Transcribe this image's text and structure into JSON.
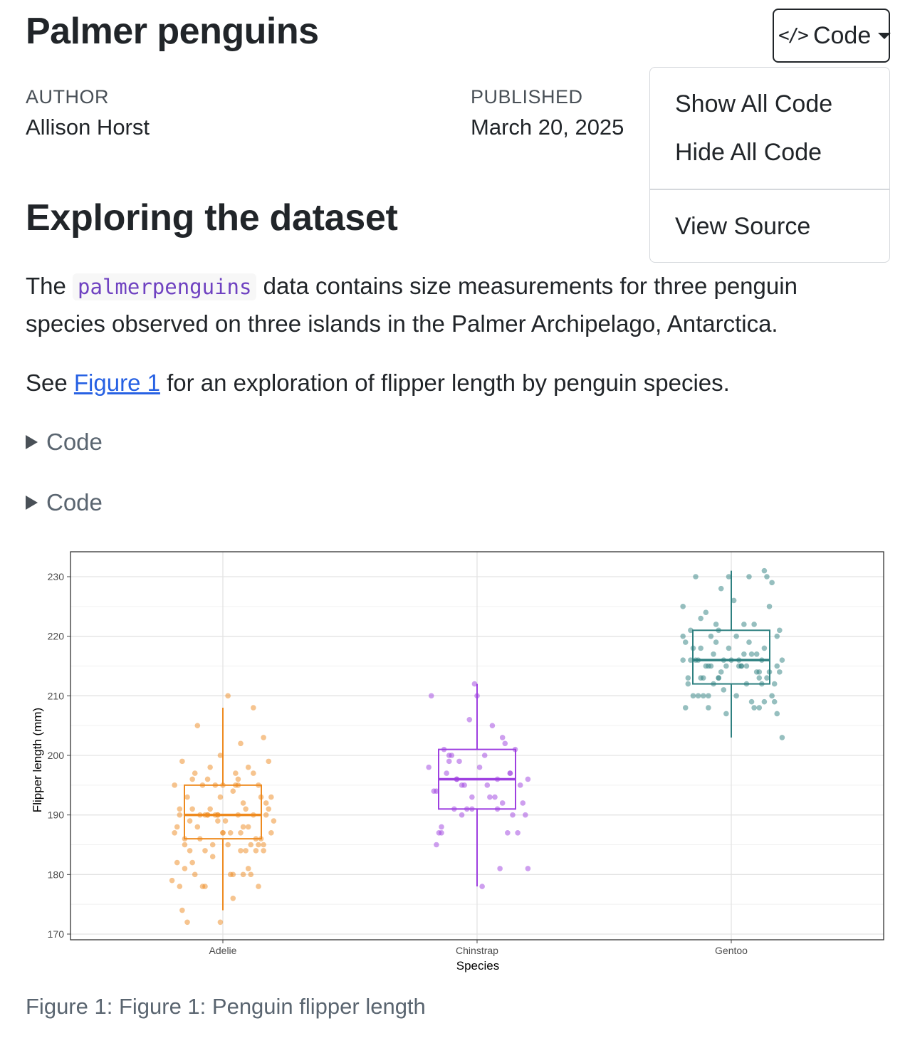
{
  "page": {
    "title": "Palmer penguins",
    "code_button_icon": "code-icon",
    "code_button_label": "Code",
    "meta": {
      "author_label": "AUTHOR",
      "author": "Allison Horst",
      "published_label": "PUBLISHED",
      "published": "March 20, 2025"
    },
    "dropdown": {
      "show_all": "Show All Code",
      "hide_all": "Hide All Code",
      "view_source": "View Source"
    },
    "section_heading": "Exploring the dataset",
    "para1": {
      "pre": "The ",
      "code": "palmerpenguins",
      "post": " data contains size measurements for three penguin",
      "line2": "species observed on three islands in the Palmer Archipelago, Antarctica."
    },
    "para2": {
      "pre": "See ",
      "link": "Figure 1",
      "post": " for an exploration of flipper length by penguin species."
    },
    "code_folds": [
      "Code",
      "Code"
    ],
    "caption": "Figure 1: Figure 1: Penguin flipper length"
  },
  "chart_data": {
    "type": "boxplot",
    "xlabel": "Species",
    "ylabel": "Flipper length (mm)",
    "ylim": [
      170,
      232
    ],
    "yticks": [
      170,
      180,
      190,
      200,
      210,
      220,
      230
    ],
    "grid": true,
    "categories": [
      "Adelie",
      "Chinstrap",
      "Gentoo"
    ],
    "colors": {
      "Adelie": "#ee8a1f",
      "Chinstrap": "#9e3fe0",
      "Gentoo": "#2e8080"
    },
    "boxes": [
      {
        "species": "Adelie",
        "min": 174,
        "q1": 186,
        "median": 190,
        "q3": 195,
        "max": 208
      },
      {
        "species": "Chinstrap",
        "min": 178,
        "q1": 191,
        "median": 196,
        "q3": 201,
        "max": 212
      },
      {
        "species": "Gentoo",
        "min": 203,
        "q1": 212,
        "median": 216,
        "q3": 221,
        "max": 231
      }
    ],
    "points": {
      "Adelie": [
        {
          "x": 0.1,
          "y": 181
        },
        {
          "x": -0.09,
          "y": 186
        },
        {
          "x": 0.14,
          "y": 195
        },
        {
          "x": -0.01,
          "y": 193
        },
        {
          "x": 0.06,
          "y": 190
        },
        {
          "x": -0.15,
          "y": 186
        },
        {
          "x": 0.08,
          "y": 180
        },
        {
          "x": -0.12,
          "y": 182
        },
        {
          "x": 0.18,
          "y": 191
        },
        {
          "x": -0.05,
          "y": 198
        },
        {
          "x": 0.02,
          "y": 185
        },
        {
          "x": -0.19,
          "y": 195
        },
        {
          "x": 0.12,
          "y": 197
        },
        {
          "x": -0.07,
          "y": 184
        },
        {
          "x": 0.04,
          "y": 194
        },
        {
          "x": -0.16,
          "y": 174
        },
        {
          "x": 0.11,
          "y": 180
        },
        {
          "x": -0.02,
          "y": 189
        },
        {
          "x": 0.16,
          "y": 185
        },
        {
          "x": -0.11,
          "y": 180
        },
        {
          "x": 0.07,
          "y": 187
        },
        {
          "x": -0.04,
          "y": 183
        },
        {
          "x": 0.19,
          "y": 187
        },
        {
          "x": -0.14,
          "y": 172
        },
        {
          "x": 0.03,
          "y": 180
        },
        {
          "x": -0.08,
          "y": 178
        },
        {
          "x": 0.14,
          "y": 178
        },
        {
          "x": -0.18,
          "y": 188
        },
        {
          "x": 0.09,
          "y": 184
        },
        {
          "x": 0.0,
          "y": 195
        },
        {
          "x": -0.06,
          "y": 196
        },
        {
          "x": 0.17,
          "y": 190
        },
        {
          "x": -0.13,
          "y": 184
        },
        {
          "x": 0.05,
          "y": 195
        },
        {
          "x": -0.03,
          "y": 190
        },
        {
          "x": 0.13,
          "y": 186
        },
        {
          "x": -0.17,
          "y": 191
        },
        {
          "x": 0.08,
          "y": 192
        },
        {
          "x": -0.1,
          "y": 188
        },
        {
          "x": 0.15,
          "y": 193
        },
        {
          "x": -0.06,
          "y": 190
        },
        {
          "x": 0.02,
          "y": 210
        },
        {
          "x": -0.12,
          "y": 191
        },
        {
          "x": 0.1,
          "y": 198
        },
        {
          "x": -0.02,
          "y": 190
        },
        {
          "x": 0.16,
          "y": 203
        },
        {
          "x": -0.15,
          "y": 185
        },
        {
          "x": 0.07,
          "y": 184
        },
        {
          "x": -0.08,
          "y": 195
        },
        {
          "x": 0.19,
          "y": 193
        },
        {
          "x": 0.0,
          "y": 187
        },
        {
          "x": -0.19,
          "y": 187
        },
        {
          "x": 0.12,
          "y": 190
        },
        {
          "x": -0.04,
          "y": 185
        },
        {
          "x": 0.06,
          "y": 195
        },
        {
          "x": -0.11,
          "y": 197
        },
        {
          "x": 0.04,
          "y": 176
        },
        {
          "x": -0.17,
          "y": 190
        },
        {
          "x": 0.18,
          "y": 199
        },
        {
          "x": -0.06,
          "y": 190
        },
        {
          "x": 0.09,
          "y": 191
        },
        {
          "x": -0.01,
          "y": 200
        },
        {
          "x": 0.14,
          "y": 185
        },
        {
          "x": -0.14,
          "y": 193
        },
        {
          "x": 0.03,
          "y": 187
        },
        {
          "x": -0.09,
          "y": 190
        },
        {
          "x": 0.11,
          "y": 185
        },
        {
          "x": -0.07,
          "y": 178
        },
        {
          "x": 0.17,
          "y": 192
        },
        {
          "x": -0.13,
          "y": 189
        },
        {
          "x": 0.01,
          "y": 189
        },
        {
          "x": -0.02,
          "y": 190
        },
        {
          "x": 0.15,
          "y": 186
        },
        {
          "x": -0.18,
          "y": 182
        },
        {
          "x": 0.05,
          "y": 197
        },
        {
          "x": -0.05,
          "y": 191
        },
        {
          "x": 0.13,
          "y": 184
        },
        {
          "x": -0.16,
          "y": 199
        },
        {
          "x": 0.08,
          "y": 188
        },
        {
          "x": -0.03,
          "y": 195
        },
        {
          "x": 0.2,
          "y": 189
        },
        {
          "x": -0.1,
          "y": 205
        },
        {
          "x": 0.06,
          "y": 196
        },
        {
          "x": -0.12,
          "y": 196
        },
        {
          "x": 0.12,
          "y": 208
        },
        {
          "x": 0.0,
          "y": 187
        },
        {
          "x": -0.2,
          "y": 179
        },
        {
          "x": 0.1,
          "y": 188
        },
        {
          "x": -0.07,
          "y": 190
        },
        {
          "x": 0.04,
          "y": 180
        },
        {
          "x": -0.15,
          "y": 181
        },
        {
          "x": 0.16,
          "y": 184
        },
        {
          "x": -0.01,
          "y": 172
        },
        {
          "x": 0.07,
          "y": 202
        },
        {
          "x": -0.17,
          "y": 178
        }
      ],
      "Chinstrap": [
        {
          "x": 0.1,
          "y": 192
        },
        {
          "x": -0.08,
          "y": 196
        },
        {
          "x": 0.05,
          "y": 193
        },
        {
          "x": -0.14,
          "y": 188
        },
        {
          "x": 0.13,
          "y": 197
        },
        {
          "x": -0.04,
          "y": 191
        },
        {
          "x": 0.08,
          "y": 196
        },
        {
          "x": -0.11,
          "y": 199
        },
        {
          "x": 0.18,
          "y": 192
        },
        {
          "x": -0.17,
          "y": 194
        },
        {
          "x": 0.02,
          "y": 178
        },
        {
          "x": -0.06,
          "y": 195
        },
        {
          "x": 0.15,
          "y": 201
        },
        {
          "x": -0.09,
          "y": 191
        },
        {
          "x": 0.11,
          "y": 202
        },
        {
          "x": -0.15,
          "y": 187
        },
        {
          "x": 0.0,
          "y": 210
        },
        {
          "x": -0.02,
          "y": 193
        },
        {
          "x": 0.2,
          "y": 196
        },
        {
          "x": -0.19,
          "y": 198
        },
        {
          "x": 0.06,
          "y": 205
        },
        {
          "x": -0.12,
          "y": 197
        },
        {
          "x": 0.14,
          "y": 190
        },
        {
          "x": -0.05,
          "y": 195
        },
        {
          "x": 0.09,
          "y": 181
        },
        {
          "x": -0.16,
          "y": 185
        },
        {
          "x": 0.19,
          "y": 190
        },
        {
          "x": -0.07,
          "y": 199
        },
        {
          "x": 0.03,
          "y": 200
        },
        {
          "x": -0.13,
          "y": 201
        },
        {
          "x": 0.17,
          "y": 195
        },
        {
          "x": -0.03,
          "y": 206
        },
        {
          "x": 0.12,
          "y": 187
        },
        {
          "x": -0.1,
          "y": 200
        },
        {
          "x": 0.07,
          "y": 193
        },
        {
          "x": -0.18,
          "y": 210
        },
        {
          "x": 0.01,
          "y": 198
        },
        {
          "x": -0.01,
          "y": 212
        },
        {
          "x": 0.16,
          "y": 187
        },
        {
          "x": -0.14,
          "y": 187
        },
        {
          "x": 0.1,
          "y": 203
        },
        {
          "x": -0.06,
          "y": 190
        },
        {
          "x": 0.2,
          "y": 181
        },
        {
          "x": -0.08,
          "y": 196
        },
        {
          "x": 0.04,
          "y": 195
        },
        {
          "x": -0.11,
          "y": 200
        },
        {
          "x": 0.13,
          "y": 197
        },
        {
          "x": -0.16,
          "y": 194
        },
        {
          "x": 0.08,
          "y": 191
        },
        {
          "x": -0.02,
          "y": 191
        }
      ],
      "Gentoo": [
        {
          "x": 0.1,
          "y": 217
        },
        {
          "x": -0.08,
          "y": 215
        },
        {
          "x": 0.05,
          "y": 222
        },
        {
          "x": -0.14,
          "y": 230
        },
        {
          "x": 0.13,
          "y": 218
        },
        {
          "x": -0.04,
          "y": 214
        },
        {
          "x": 0.18,
          "y": 215
        },
        {
          "x": -0.17,
          "y": 213
        },
        {
          "x": 0.02,
          "y": 210
        },
        {
          "x": -0.11,
          "y": 210
        },
        {
          "x": 0.15,
          "y": 214
        },
        {
          "x": -0.06,
          "y": 219
        },
        {
          "x": 0.08,
          "y": 209
        },
        {
          "x": -0.19,
          "y": 216
        },
        {
          "x": 0.11,
          "y": 214
        },
        {
          "x": -0.02,
          "y": 207
        },
        {
          "x": 0.19,
          "y": 221
        },
        {
          "x": -0.09,
          "y": 215
        },
        {
          "x": 0.06,
          "y": 212
        },
        {
          "x": -0.15,
          "y": 210
        },
        {
          "x": 0.14,
          "y": 230
        },
        {
          "x": -0.12,
          "y": 213
        },
        {
          "x": 0.03,
          "y": 215
        },
        {
          "x": -0.05,
          "y": 221
        },
        {
          "x": 0.17,
          "y": 209
        },
        {
          "x": -0.18,
          "y": 208
        },
        {
          "x": 0.0,
          "y": 216
        },
        {
          "x": -0.07,
          "y": 217
        },
        {
          "x": 0.12,
          "y": 212
        },
        {
          "x": -0.13,
          "y": 216
        },
        {
          "x": 0.09,
          "y": 222
        },
        {
          "x": -0.01,
          "y": 218
        },
        {
          "x": 0.16,
          "y": 210
        },
        {
          "x": -0.16,
          "y": 221
        },
        {
          "x": 0.04,
          "y": 215
        },
        {
          "x": -0.1,
          "y": 224
        },
        {
          "x": 0.2,
          "y": 203
        },
        {
          "x": -0.03,
          "y": 216
        },
        {
          "x": 0.07,
          "y": 230
        },
        {
          "x": -0.19,
          "y": 225
        },
        {
          "x": 0.13,
          "y": 209
        },
        {
          "x": -0.08,
          "y": 220
        },
        {
          "x": 0.01,
          "y": 226
        },
        {
          "x": -0.14,
          "y": 216
        },
        {
          "x": 0.18,
          "y": 220
        },
        {
          "x": -0.05,
          "y": 213
        },
        {
          "x": 0.11,
          "y": 213
        },
        {
          "x": -0.12,
          "y": 218
        },
        {
          "x": 0.06,
          "y": 215
        },
        {
          "x": -0.17,
          "y": 212
        },
        {
          "x": 0.15,
          "y": 225
        },
        {
          "x": -0.02,
          "y": 215
        },
        {
          "x": 0.09,
          "y": 208
        },
        {
          "x": -0.09,
          "y": 208
        },
        {
          "x": 0.19,
          "y": 214
        },
        {
          "x": -0.15,
          "y": 218
        },
        {
          "x": 0.03,
          "y": 216
        },
        {
          "x": -0.06,
          "y": 222
        },
        {
          "x": 0.16,
          "y": 229
        },
        {
          "x": -0.11,
          "y": 213
        },
        {
          "x": 0.05,
          "y": 217
        },
        {
          "x": -0.18,
          "y": 219
        },
        {
          "x": 0.12,
          "y": 216
        },
        {
          "x": -0.04,
          "y": 228
        },
        {
          "x": 0.08,
          "y": 217
        },
        {
          "x": -0.13,
          "y": 210
        },
        {
          "x": 0.17,
          "y": 212
        },
        {
          "x": -0.01,
          "y": 230
        },
        {
          "x": 0.1,
          "y": 214
        },
        {
          "x": -0.07,
          "y": 212
        },
        {
          "x": 0.02,
          "y": 220
        },
        {
          "x": -0.16,
          "y": 216
        },
        {
          "x": 0.14,
          "y": 213
        },
        {
          "x": -0.09,
          "y": 210
        },
        {
          "x": 0.2,
          "y": 216
        },
        {
          "x": -0.03,
          "y": 211
        },
        {
          "x": 0.07,
          "y": 219
        },
        {
          "x": -0.12,
          "y": 223
        },
        {
          "x": 0.13,
          "y": 231
        },
        {
          "x": -0.19,
          "y": 220
        },
        {
          "x": 0.04,
          "y": 215
        },
        {
          "x": -0.05,
          "y": 213
        },
        {
          "x": 0.18,
          "y": 207
        },
        {
          "x": -0.1,
          "y": 215
        },
        {
          "x": 0.11,
          "y": 208
        }
      ]
    }
  }
}
